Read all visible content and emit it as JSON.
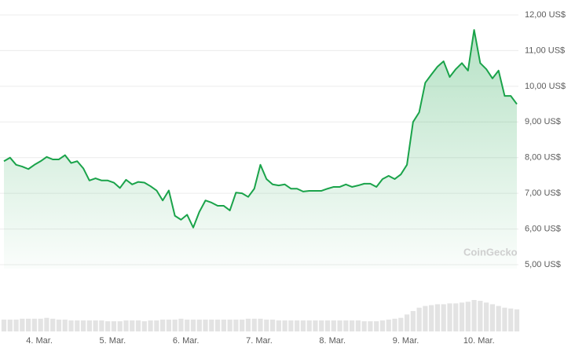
{
  "chart_data": {
    "type": "line",
    "color": "#1aa34a",
    "grid": true,
    "watermark": "CoinGecko",
    "values": [
      7.9,
      8.0,
      7.8,
      7.75,
      7.68,
      7.8,
      7.9,
      8.02,
      7.95,
      7.95,
      8.07,
      7.85,
      7.9,
      7.7,
      7.36,
      7.42,
      7.36,
      7.36,
      7.3,
      7.15,
      7.38,
      7.25,
      7.32,
      7.3,
      7.2,
      7.08,
      6.8,
      7.08,
      6.37,
      6.26,
      6.4,
      6.04,
      6.48,
      6.8,
      6.74,
      6.65,
      6.65,
      6.52,
      7.02,
      7.0,
      6.9,
      7.13,
      7.8,
      7.4,
      7.25,
      7.22,
      7.25,
      7.13,
      7.13,
      7.05,
      7.07,
      7.07,
      7.07,
      7.13,
      7.18,
      7.18,
      7.25,
      7.18,
      7.22,
      7.27,
      7.27,
      7.18,
      7.4,
      7.49,
      7.4,
      7.53,
      7.8,
      9.0,
      9.27,
      10.1,
      10.33,
      10.55,
      10.7,
      10.26,
      10.48,
      10.65,
      10.44,
      11.58,
      10.65,
      10.48,
      10.22,
      10.44,
      9.73,
      9.73,
      9.5
    ],
    "volume": [
      14,
      14,
      14,
      15,
      15,
      15,
      15,
      16,
      15,
      14,
      14,
      13,
      13,
      13,
      13,
      13,
      13,
      12,
      12,
      12,
      13,
      13,
      13,
      12,
      13,
      13,
      14,
      14,
      14,
      15,
      14,
      14,
      14,
      14,
      14,
      14,
      14,
      14,
      14,
      14,
      15,
      15,
      15,
      14,
      14,
      13,
      13,
      13,
      13,
      13,
      13,
      13,
      13,
      13,
      13,
      13,
      13,
      13,
      13,
      12,
      12,
      12,
      13,
      14,
      15,
      16,
      20,
      24,
      28,
      30,
      31,
      32,
      32,
      33,
      33,
      34,
      35,
      37,
      36,
      34,
      32,
      30,
      28,
      27,
      26
    ],
    "xlim": [
      0,
      84
    ],
    "xticks": [
      {
        "value": 5.8,
        "label": "4. Mar."
      },
      {
        "value": 17.8,
        "label": "5. Mar."
      },
      {
        "value": 29.8,
        "label": "6. Mar."
      },
      {
        "value": 41.8,
        "label": "7. Mar."
      },
      {
        "value": 53.8,
        "label": "8. Mar."
      },
      {
        "value": 65.8,
        "label": "9. Mar."
      },
      {
        "value": 77.8,
        "label": "10. Mar."
      }
    ],
    "ylim": [
      5,
      12
    ],
    "yticks": [
      {
        "value": 5,
        "label": "5,00 US$"
      },
      {
        "value": 6,
        "label": "6,00 US$"
      },
      {
        "value": 7,
        "label": "7,00 US$"
      },
      {
        "value": 8,
        "label": "8,00 US$"
      },
      {
        "value": 9,
        "label": "9,00 US$"
      },
      {
        "value": 10,
        "label": "10,00 US$"
      },
      {
        "value": 11,
        "label": "11,00 US$"
      },
      {
        "value": 12,
        "label": "12,00 US$"
      }
    ]
  }
}
